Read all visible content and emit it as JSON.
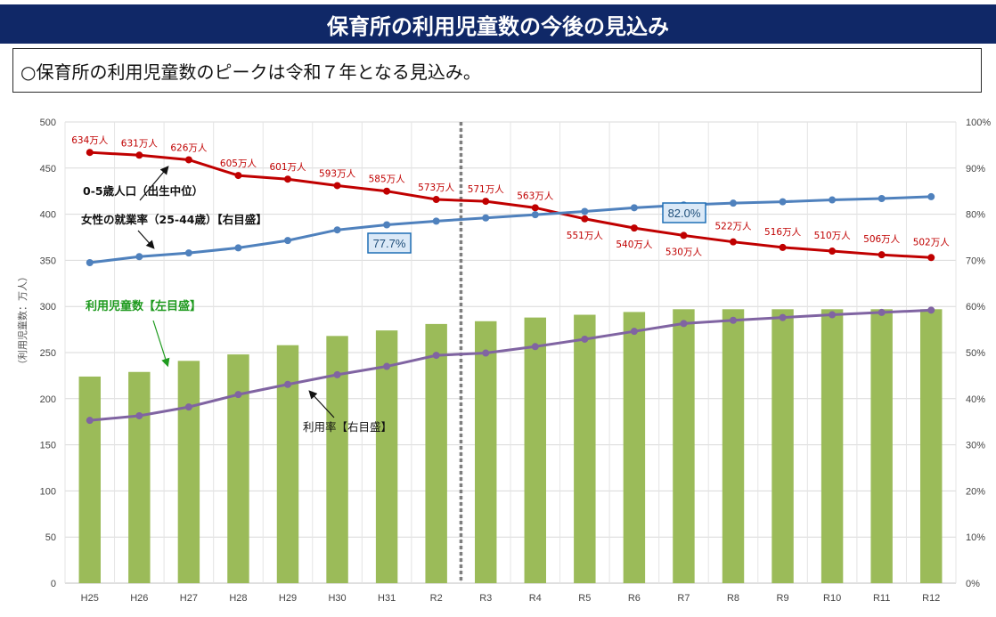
{
  "header": {
    "title": "保育所の利用児童数の今後の見込み"
  },
  "summary": {
    "text": "○保育所の利用児童数のピークは令和７年となる見込み。"
  },
  "annotations": {
    "population": "0-5歳人口（出生中位）",
    "employment": "女性の就業率（25-44歳）【右目盛】",
    "children": "利用児童数【左目盛】",
    "usage": "利用率【右目盛】",
    "emp_box_1": "77.7%",
    "emp_box_2": "82.0%",
    "y_left_label": "（利用児童数：万人）"
  },
  "colors": {
    "bar": "#9bbb59",
    "population": "#c00000",
    "employment": "#4f81bd",
    "usage": "#8064a2",
    "divider": "#7f7f7f"
  },
  "chart_data": {
    "type": "bar",
    "categories": [
      "H25",
      "H26",
      "H27",
      "H28",
      "H29",
      "H30",
      "H31",
      "R2",
      "R3",
      "R4",
      "R5",
      "R6",
      "R7",
      "R8",
      "R9",
      "R10",
      "R11",
      "R12"
    ],
    "y_left_ticks": [
      "0",
      "50",
      "100",
      "150",
      "200",
      "250",
      "300",
      "350",
      "400",
      "450",
      "500"
    ],
    "y_right_ticks": [
      "0%",
      "10%",
      "20%",
      "30%",
      "40%",
      "50%",
      "60%",
      "70%",
      "80%",
      "90%",
      "100%"
    ],
    "ylim_left": [
      0,
      500
    ],
    "ylim_right": [
      0,
      100
    ],
    "grid": true,
    "divider_after": "R2",
    "series": [
      {
        "name": "利用児童数【左目盛】",
        "type": "bar",
        "axis": "left",
        "values": [
          224,
          229,
          241,
          248,
          258,
          268,
          274,
          281,
          284,
          288,
          291,
          294,
          297,
          297,
          297,
          297,
          297,
          297
        ]
      },
      {
        "name": "0-5歳人口（出生中位）",
        "type": "line",
        "axis": "left",
        "values": [
          467,
          464,
          459,
          442,
          438,
          431,
          425,
          416,
          414,
          407,
          395,
          385,
          377,
          370,
          364,
          360,
          356,
          353
        ],
        "data_labels": [
          "634万人",
          "631万人",
          "626万人",
          "605万人",
          "601万人",
          "593万人",
          "585万人",
          "573万人",
          "571万人",
          "563万人",
          "551万人",
          "540万人",
          "530万人",
          "522万人",
          "516万人",
          "510万人",
          "506万人",
          "502万人"
        ]
      },
      {
        "name": "女性の就業率（25-44歳）【右目盛】",
        "type": "line",
        "axis": "right",
        "values": [
          69.5,
          70.8,
          71.6,
          72.7,
          74.3,
          76.6,
          77.7,
          78.5,
          79.2,
          79.9,
          80.6,
          81.4,
          82.0,
          82.4,
          82.7,
          83.1,
          83.4,
          83.8
        ]
      },
      {
        "name": "利用率【右目盛】",
        "type": "line",
        "axis": "right",
        "values": [
          35.3,
          36.3,
          38.2,
          40.9,
          43.1,
          45.2,
          47.0,
          49.4,
          49.9,
          51.3,
          52.9,
          54.6,
          56.3,
          57.0,
          57.6,
          58.2,
          58.7,
          59.2
        ]
      }
    ]
  }
}
